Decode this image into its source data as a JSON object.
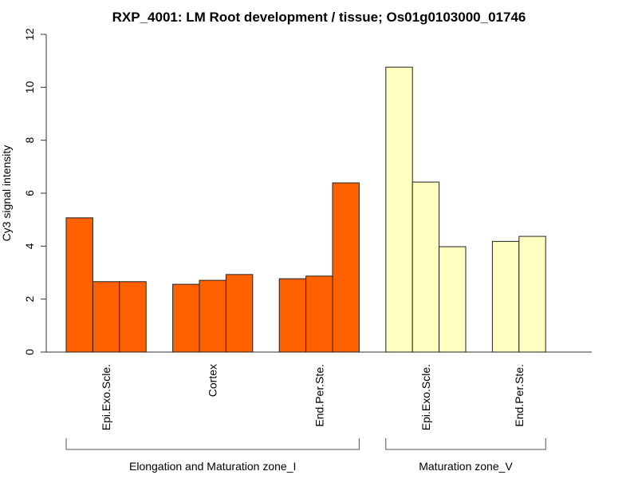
{
  "chart_data": {
    "type": "bar",
    "title": "RXP_4001: LM Root development / tissue; Os01g0103000_01746",
    "xlabel": "",
    "ylabel": "Cy3 signal intensity",
    "ylim": [
      0,
      12
    ],
    "yticks": [
      "0",
      "2",
      "4",
      "6",
      "8",
      "10",
      "12"
    ],
    "grid": false,
    "groups": [
      {
        "name": "Elongation and Maturation zone_I",
        "color": "#FF6100",
        "categories": [
          {
            "label": "Epi.Exo.Scle.",
            "values": [
              5.07,
              2.66,
              2.66
            ]
          },
          {
            "label": "Cortex",
            "values": [
              2.56,
              2.71,
              2.93
            ]
          },
          {
            "label": "End.Per.Ste.",
            "values": [
              2.77,
              2.87,
              6.39
            ]
          }
        ]
      },
      {
        "name": "Maturation zone_V",
        "color": "#FFFFC0",
        "categories": [
          {
            "label": "Epi.Exo.Scle.",
            "values": [
              10.76,
              6.42,
              3.98
            ]
          },
          {
            "label": "End.Per.Ste.",
            "values": [
              4.18,
              4.37
            ]
          }
        ]
      }
    ]
  }
}
